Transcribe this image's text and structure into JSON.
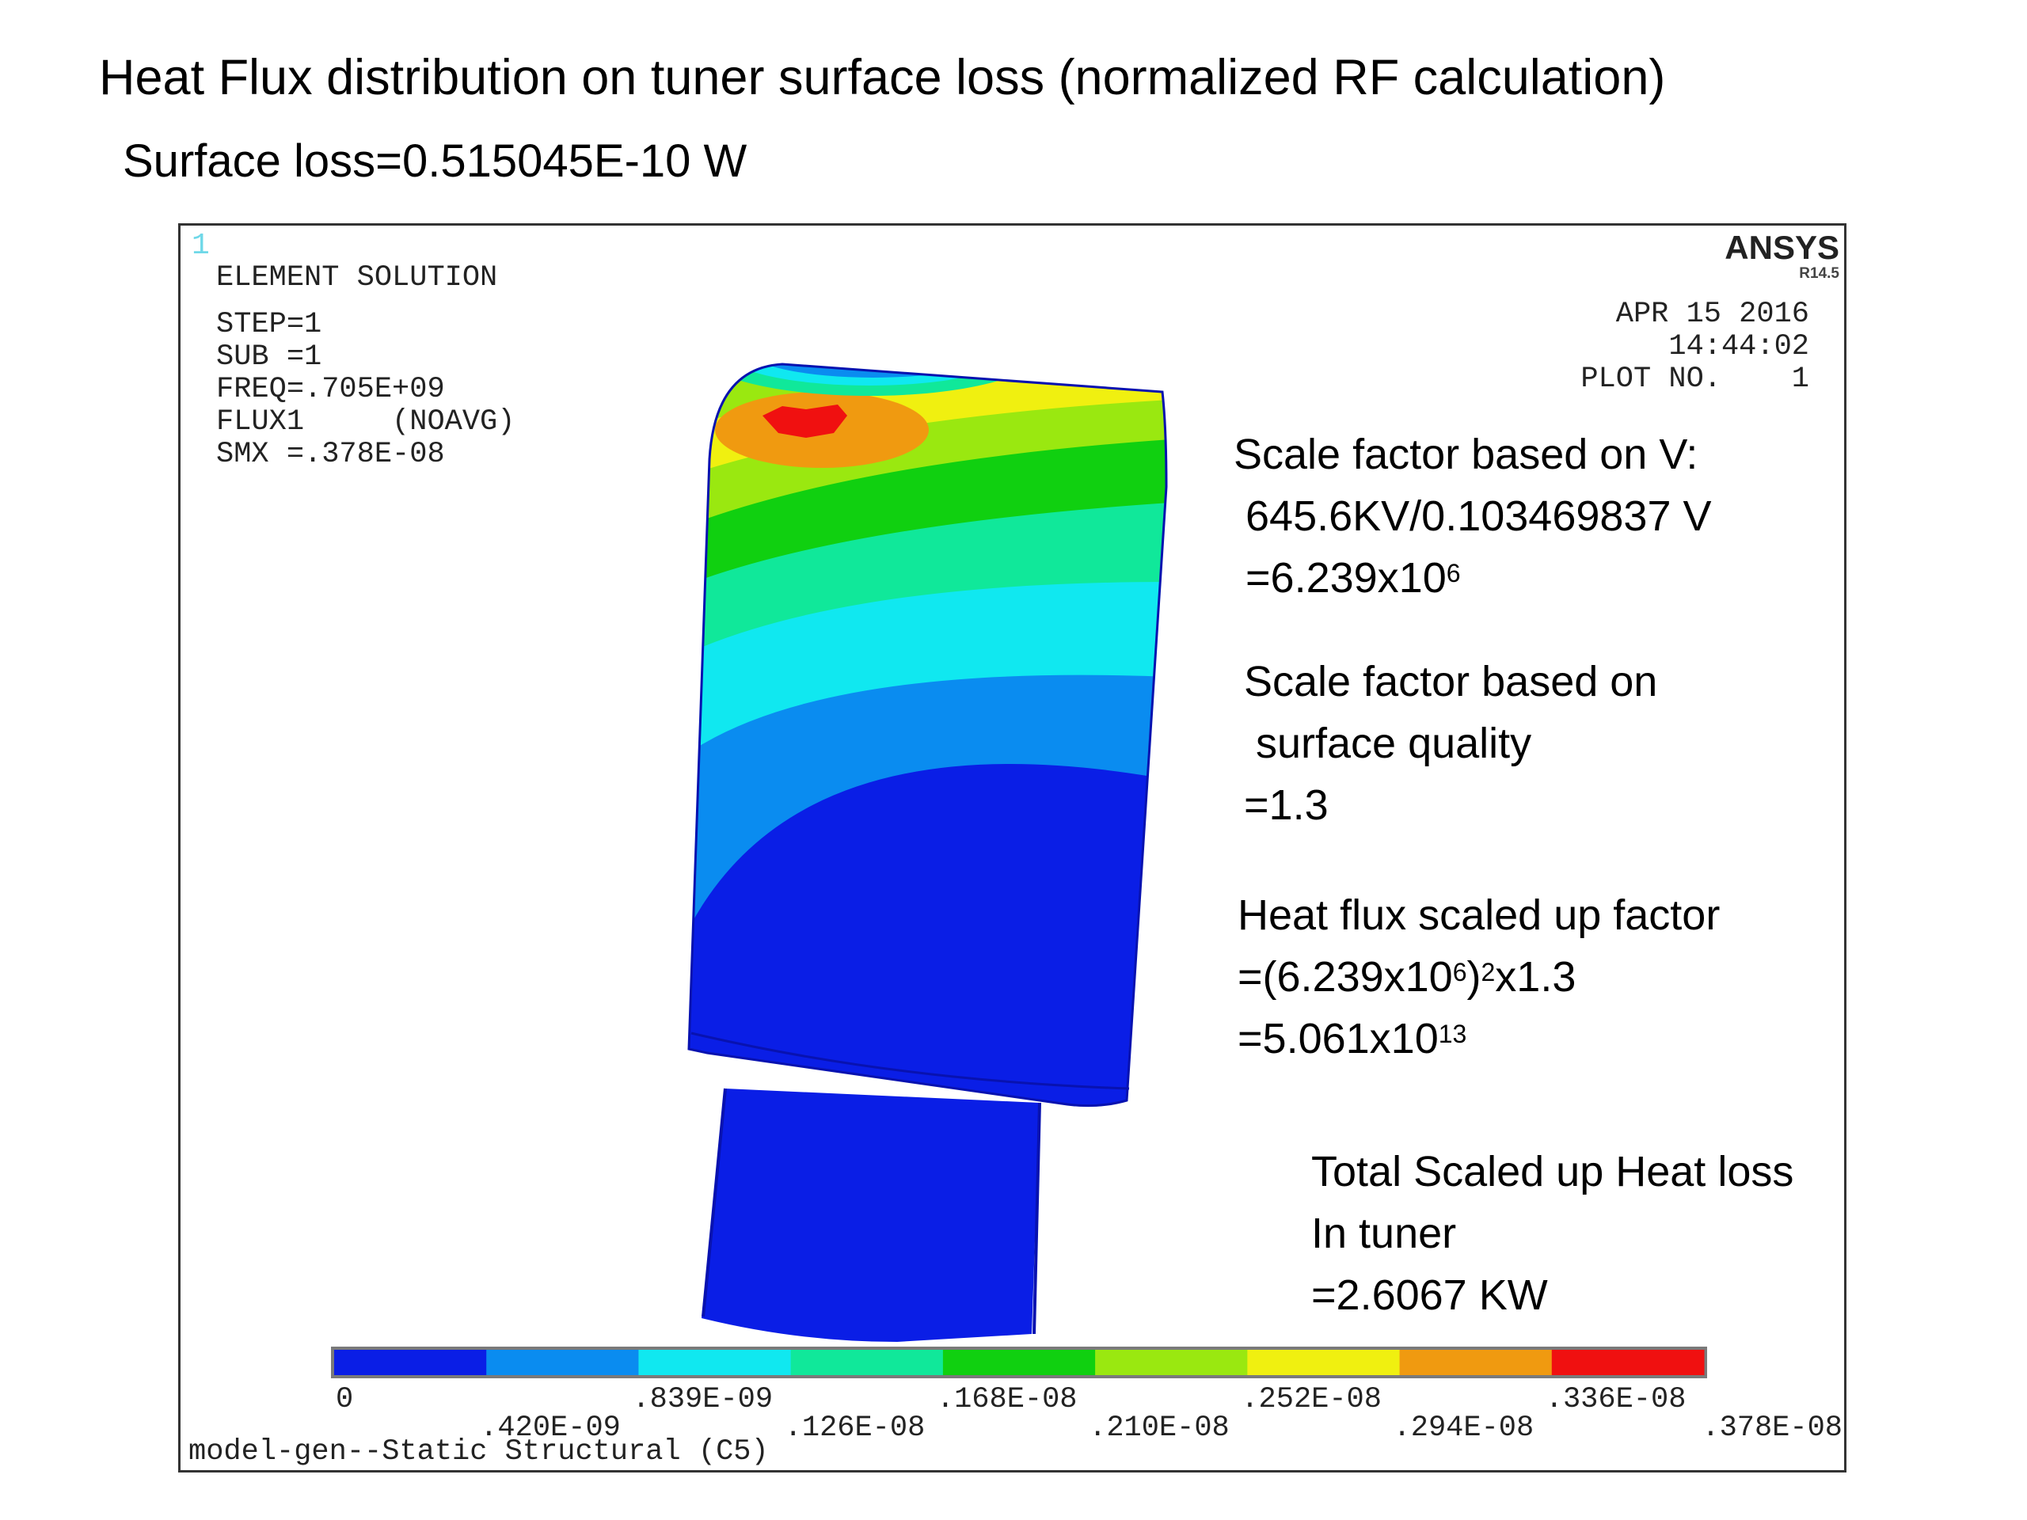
{
  "slide": {
    "title": "Heat Flux distribution on tuner surface loss (normalized RF calculation)",
    "subtitle": "Surface loss=0.515045E-10 W"
  },
  "plot": {
    "plot_number": "1",
    "element_title": "ELEMENT SOLUTION",
    "params": [
      "STEP=1",
      "SUB =1",
      "FREQ=.705E+09",
      "FLUX1     (NOAVG)",
      "SMX =.378E-08"
    ],
    "brand": "ANSYS",
    "version": "R14.5",
    "date": "APR 15 2016",
    "time": "14:44:02",
    "plot_no": "PLOT NO.    1",
    "model_label": "model-gen--Static Structural (C5)"
  },
  "annotations": {
    "scale_v": {
      "line1": "Scale factor based on V:",
      "line2": "645.6KV/0.103469837 V",
      "line3_base": "=6.239x10",
      "line3_exp": "6"
    },
    "scale_surface": {
      "line1": "Scale factor based on",
      "line2": "surface quality",
      "line3": "=1.3"
    },
    "heat_flux": {
      "line1": "Heat flux scaled up factor",
      "line2_a": "=(6.239x10",
      "line2_exp1": "6",
      "line2_b": ")",
      "line2_exp2": "2",
      "line2_c": "x1.3",
      "line3_base": "=5.061x10",
      "line3_exp": "13"
    },
    "total": {
      "line1": "Total Scaled up Heat loss",
      "line2": "In tuner",
      "line3": "=2.6067 KW"
    }
  },
  "legend": {
    "colors": [
      "#0a1ee6",
      "#0a8cf0",
      "#10e8f0",
      "#10e89a",
      "#10d010",
      "#9ae810",
      "#f0f010",
      "#f09a10",
      "#f01010"
    ],
    "ticks_upper": [
      "0",
      ".839E-09",
      ".168E-08",
      ".252E-08",
      ".336E-08"
    ],
    "ticks_lower": [
      ".420E-09",
      ".126E-08",
      ".210E-08",
      ".294E-08",
      ".378E-08"
    ]
  }
}
